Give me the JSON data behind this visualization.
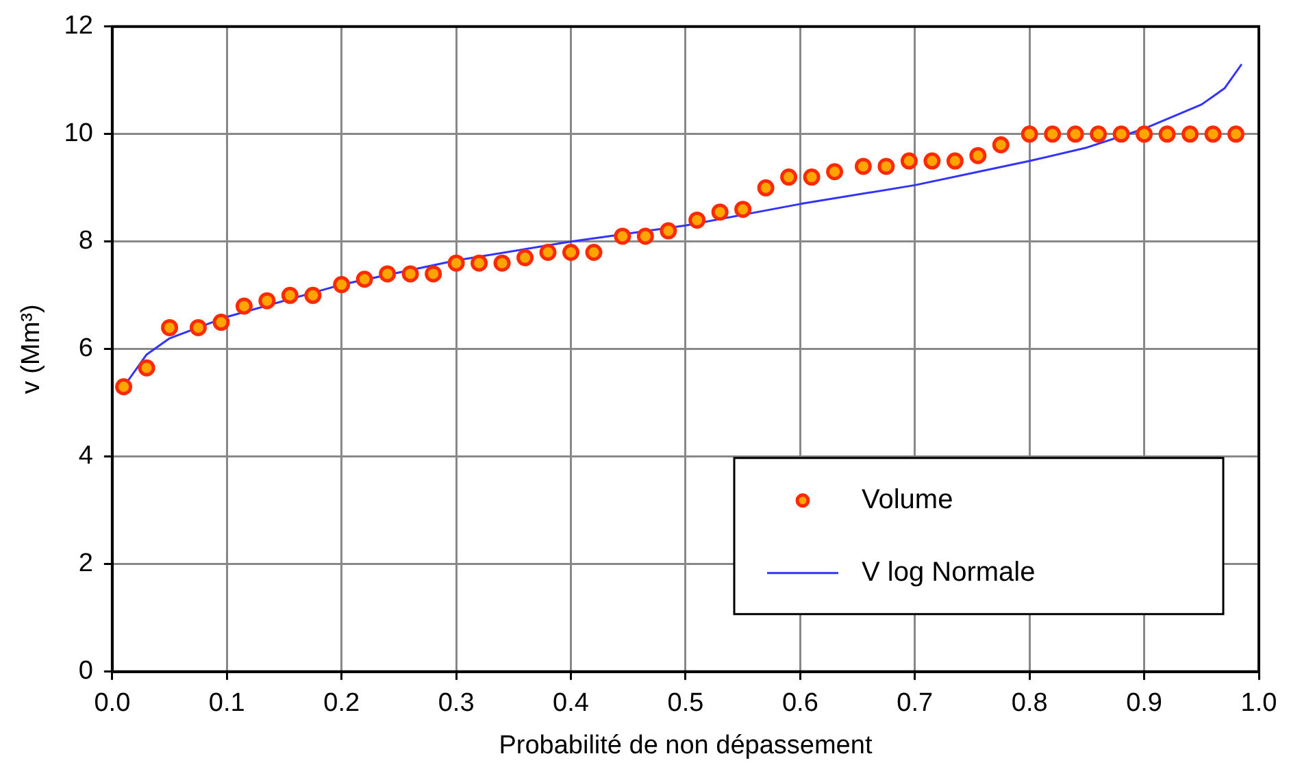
{
  "chart_data": {
    "type": "scatter",
    "xlabel": "Probabilité de non dépassement",
    "ylabel": "v (Mm³)",
    "xlim": [
      0,
      1
    ],
    "xticks": [
      {
        "value": 0,
        "label": "0.0"
      },
      {
        "value": 0.1,
        "label": "0.1"
      },
      {
        "value": 0.2,
        "label": "0.2"
      },
      {
        "value": 0.3,
        "label": "0.3"
      },
      {
        "value": 0.4,
        "label": "0.4"
      },
      {
        "value": 0.5,
        "label": "0.5"
      },
      {
        "value": 0.6,
        "label": "0.6"
      },
      {
        "value": 0.7,
        "label": "0.7"
      },
      {
        "value": 0.8,
        "label": "0.8"
      },
      {
        "value": 0.9,
        "label": "0.9"
      },
      {
        "value": 1,
        "label": "1.0"
      }
    ],
    "ylim": [
      0,
      12
    ],
    "yticks": [
      0,
      2,
      4,
      6,
      8,
      10,
      12
    ],
    "grid": true,
    "legend": "bottom right",
    "marker": "circle",
    "series": [
      {
        "name": "Volume",
        "color": "#ffa500",
        "x": [
          0.01,
          0.03,
          0.05,
          0.075,
          0.095,
          0.115,
          0.135,
          0.155,
          0.175,
          0.2,
          0.22,
          0.24,
          0.26,
          0.28,
          0.3,
          0.32,
          0.34,
          0.36,
          0.38,
          0.4,
          0.42,
          0.445,
          0.465,
          0.485,
          0.51,
          0.53,
          0.55,
          0.57,
          0.59,
          0.61,
          0.63,
          0.655,
          0.675,
          0.695,
          0.715,
          0.735,
          0.755,
          0.775,
          0.8,
          0.82,
          0.84,
          0.86,
          0.88,
          0.9,
          0.92,
          0.94,
          0.96,
          0.98
        ],
        "values": [
          5.3,
          5.65,
          6.4,
          6.4,
          6.5,
          6.8,
          6.9,
          7.0,
          7.0,
          7.2,
          7.3,
          7.4,
          7.4,
          7.4,
          7.6,
          7.6,
          7.6,
          7.7,
          7.8,
          7.8,
          7.8,
          8.1,
          8.1,
          8.2,
          8.4,
          8.55,
          8.6,
          9.0,
          9.2,
          9.2,
          9.3,
          9.4,
          9.4,
          9.5,
          9.5,
          9.5,
          9.6,
          9.8,
          10,
          10,
          10,
          10,
          10,
          10,
          10,
          10,
          10,
          10
        ]
      },
      {
        "name": "V log Normale",
        "type": "line",
        "color": "#3333ff",
        "marker": "none",
        "x": [
          0.01,
          0.03,
          0.05,
          0.1,
          0.2,
          0.3,
          0.4,
          0.5,
          0.6,
          0.7,
          0.8,
          0.85,
          0.9,
          0.95,
          0.97,
          0.985
        ],
        "values": [
          5.3,
          5.9,
          6.2,
          6.6,
          7.2,
          7.65,
          8.0,
          8.3,
          8.7,
          9.05,
          9.5,
          9.75,
          10.1,
          10.55,
          10.85,
          11.3
        ]
      }
    ]
  }
}
